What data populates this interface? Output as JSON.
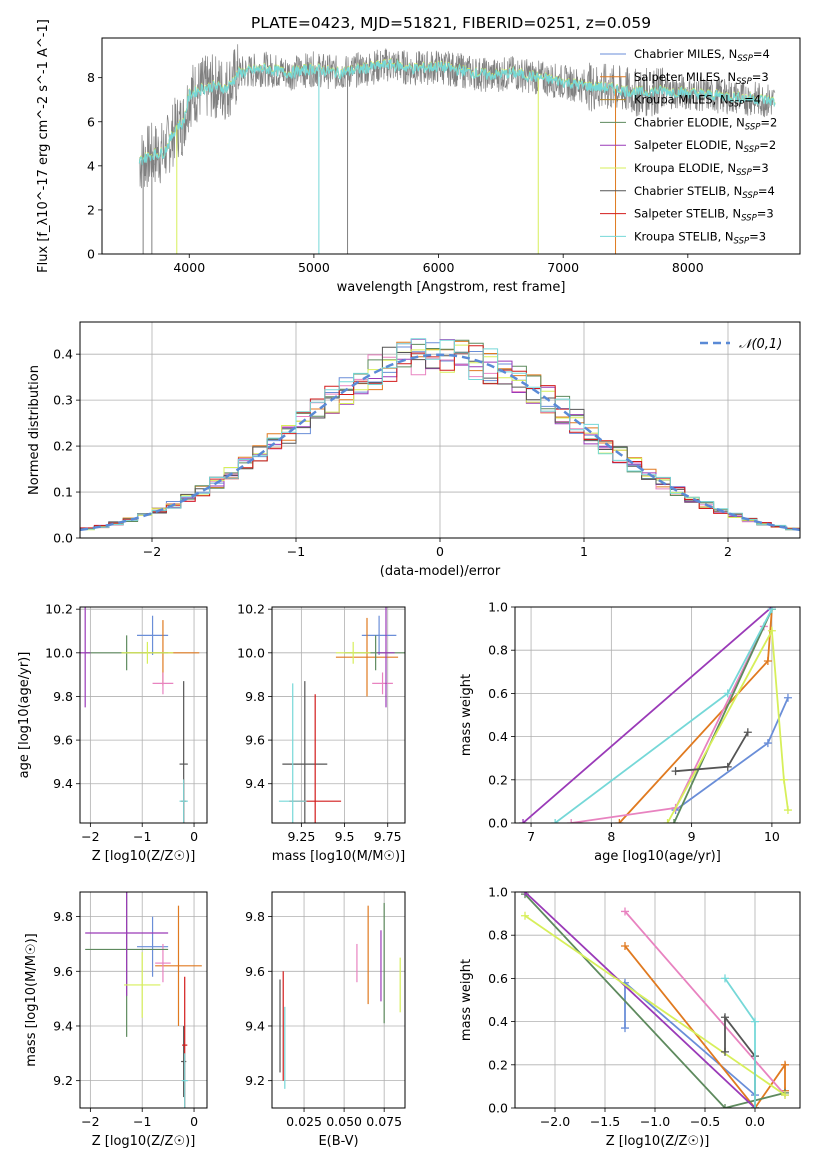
{
  "colors": {
    "blue": "#6a8ed8",
    "orange": "#e07a20",
    "pink": "#e883c0",
    "green": "#5e8a5e",
    "purple": "#9a3ab8",
    "yellow": "#d7ef5a",
    "darkgray": "#555555",
    "red": "#d21b1b",
    "cyan": "#76d8d8",
    "gray": "#808080",
    "dash": "#5a8ad6"
  },
  "chart_data": [
    {
      "id": "spectrum",
      "type": "line",
      "title": "PLATE=0423, MJD=51821, FIBERID=0251, z=0.059",
      "xlabel": "wavelength [Angstrom, rest frame]",
      "ylabel": "Flux [f_λ10^-17 erg cm^-2 s^-1 A^-1]",
      "xlim": [
        3300,
        8900
      ],
      "ylim": [
        0,
        9.8
      ],
      "xticks": [
        4000,
        5000,
        6000,
        7000,
        8000
      ],
      "yticks": [
        0,
        2,
        4,
        6,
        8
      ],
      "legend_position": "top-right",
      "legend": [
        {
          "label": "Chabrier MILES, N_SSP=4",
          "color": "#6a8ed8"
        },
        {
          "label": "Salpeter MILES, N_SSP=3",
          "color": "#e07a20"
        },
        {
          "label": "Kroupa MILES, N_SSP=4",
          "color": "#b5862a"
        },
        {
          "label": "Chabrier ELODIE, N_SSP=2",
          "color": "#5e8a5e"
        },
        {
          "label": "Salpeter ELODIE, N_SSP=2",
          "color": "#9a3ab8"
        },
        {
          "label": "Kroupa ELODIE, N_SSP=3",
          "color": "#d7ef5a"
        },
        {
          "label": "Chabrier STELIB, N_SSP=4",
          "color": "#555555"
        },
        {
          "label": "Salpeter STELIB, N_SSP=3",
          "color": "#d21b1b"
        },
        {
          "label": "Kroupa STELIB, N_SSP=3",
          "color": "#76d8d8"
        }
      ],
      "continuum": [
        [
          3600,
          4.2
        ],
        [
          3700,
          4.5
        ],
        [
          3800,
          4.6
        ],
        [
          3900,
          5.8
        ],
        [
          3950,
          5.9
        ],
        [
          4000,
          7.2
        ],
        [
          4100,
          7.5
        ],
        [
          4200,
          7.6
        ],
        [
          4300,
          7.5
        ],
        [
          4400,
          8.2
        ],
        [
          4600,
          8.4
        ],
        [
          4800,
          8.2
        ],
        [
          5000,
          8.4
        ],
        [
          5200,
          8.2
        ],
        [
          5400,
          8.4
        ],
        [
          5600,
          8.6
        ],
        [
          5800,
          8.4
        ],
        [
          6000,
          8.5
        ],
        [
          6200,
          8.3
        ],
        [
          6400,
          8.1
        ],
        [
          6600,
          8.2
        ],
        [
          6800,
          8.0
        ],
        [
          7000,
          7.8
        ],
        [
          7200,
          7.6
        ],
        [
          7400,
          7.5
        ],
        [
          7600,
          7.3
        ],
        [
          7800,
          7.4
        ],
        [
          8000,
          7.3
        ],
        [
          8200,
          7.2
        ],
        [
          8400,
          7.1
        ],
        [
          8600,
          7.0
        ],
        [
          8700,
          6.9
        ]
      ]
    },
    {
      "id": "residuals",
      "type": "line",
      "xlabel": "(data-model)/error",
      "ylabel": "Normed distribution",
      "xlim": [
        -2.5,
        2.5
      ],
      "ylim": [
        0,
        0.47
      ],
      "xticks": [
        -2,
        -1,
        0,
        1,
        2
      ],
      "yticks": [
        0.0,
        0.1,
        0.2,
        0.3,
        0.4
      ],
      "grid": true,
      "legend": [
        {
          "label": "𝒩(0,1)",
          "style": "dashed"
        }
      ],
      "legend_position": "top-right"
    },
    {
      "id": "age_vs_Z",
      "type": "scatter",
      "xlabel": "Z [log10(Z/Z☉)]",
      "ylabel": "age  [log10(age/yr)]",
      "xlim": [
        -2.2,
        0.25
      ],
      "ylim": [
        9.22,
        10.21
      ],
      "xticks": [
        -2,
        -1,
        0
      ],
      "yticks": [
        9.4,
        9.6,
        9.8,
        10.0,
        10.2
      ],
      "grid": true,
      "points": [
        {
          "x": -0.8,
          "y": 10.08,
          "xerr": 0.3,
          "yerr": 0.09,
          "color": "blue"
        },
        {
          "x": -0.6,
          "y": 10.0,
          "xerr": 0.7,
          "yerr": 0.15,
          "color": "orange"
        },
        {
          "x": -0.6,
          "y": 9.86,
          "xerr": 0.2,
          "yerr": 0.05,
          "color": "pink"
        },
        {
          "x": -1.3,
          "y": 10.0,
          "xerr": 0.8,
          "yerr": 0.08,
          "color": "green"
        },
        {
          "x": -2.1,
          "y": 10.0,
          "xerr": 0.1,
          "yerr": 0.25,
          "color": "purple"
        },
        {
          "x": -0.9,
          "y": 10.0,
          "xerr": 0.5,
          "yerr": 0.05,
          "color": "yellow"
        },
        {
          "x": -0.2,
          "y": 9.49,
          "xerr": 0.08,
          "yerr": 0.38,
          "color": "darkgray"
        },
        {
          "x": -0.2,
          "y": 9.32,
          "xerr": 0.05,
          "yerr": 0.1,
          "color": "red"
        },
        {
          "x": -0.2,
          "y": 9.32,
          "xerr": 0.08,
          "yerr": 0.1,
          "color": "cyan"
        }
      ]
    },
    {
      "id": "age_vs_mass",
      "type": "scatter",
      "xlabel": "mass [log10(M/M☉)]",
      "ylabel": "",
      "xlim": [
        9.08,
        9.85
      ],
      "ylim": [
        9.22,
        10.21
      ],
      "xticks": [
        9.25,
        9.5,
        9.75
      ],
      "yticks": [
        9.4,
        9.6,
        9.8,
        10.0,
        10.2
      ],
      "grid": true,
      "points": [
        {
          "x": 9.7,
          "y": 10.08,
          "xerr": 0.1,
          "yerr": 0.09,
          "color": "blue"
        },
        {
          "x": 9.63,
          "y": 9.98,
          "xerr": 0.18,
          "yerr": 0.18,
          "color": "orange"
        },
        {
          "x": 9.72,
          "y": 9.86,
          "xerr": 0.06,
          "yerr": 0.05,
          "color": "pink"
        },
        {
          "x": 9.68,
          "y": 10.0,
          "xerr": 0.18,
          "yerr": 0.08,
          "color": "green"
        },
        {
          "x": 9.74,
          "y": 10.0,
          "xerr": 0.05,
          "yerr": 0.25,
          "color": "purple"
        },
        {
          "x": 9.55,
          "y": 10.0,
          "xerr": 0.1,
          "yerr": 0.05,
          "color": "yellow"
        },
        {
          "x": 9.27,
          "y": 9.49,
          "xerr": 0.13,
          "yerr": 0.38,
          "color": "darkgray"
        },
        {
          "x": 9.33,
          "y": 9.32,
          "xerr": 0.15,
          "yerr": 0.49,
          "color": "red"
        },
        {
          "x": 9.2,
          "y": 9.32,
          "xerr": 0.08,
          "yerr": 0.54,
          "color": "cyan"
        }
      ]
    },
    {
      "id": "weight_vs_age",
      "type": "line",
      "xlabel": "age  [log10(age/yr)]",
      "ylabel": "mass weight",
      "xlim": [
        6.8,
        10.35
      ],
      "ylim": [
        0,
        1
      ],
      "xticks": [
        7,
        8,
        9,
        10
      ],
      "yticks": [
        0.0,
        0.2,
        0.4,
        0.6,
        0.8,
        1.0
      ],
      "grid": true,
      "series": [
        {
          "color": "blue",
          "x": [
            8.8,
            9.95,
            10.2
          ],
          "y": [
            0.06,
            0.37,
            0.58
          ]
        },
        {
          "color": "orange",
          "x": [
            8.1,
            9.95,
            10.0
          ],
          "y": [
            0.0,
            0.75,
            0.99
          ]
        },
        {
          "color": "pink",
          "x": [
            7.5,
            8.8,
            9.9
          ],
          "y": [
            0.0,
            0.07,
            0.91
          ]
        },
        {
          "color": "green",
          "x": [
            8.78,
            10.0
          ],
          "y": [
            0.0,
            0.99
          ]
        },
        {
          "color": "purple",
          "x": [
            6.9,
            10.0
          ],
          "y": [
            0.0,
            1.0
          ]
        },
        {
          "color": "yellow",
          "x": [
            8.7,
            10.0,
            10.15,
            10.2
          ],
          "y": [
            0.0,
            0.89,
            0.2,
            0.06
          ]
        },
        {
          "color": "darkgray",
          "x": [
            8.8,
            9.45,
            9.7
          ],
          "y": [
            0.24,
            0.26,
            0.42
          ]
        },
        {
          "color": "cyan",
          "x": [
            7.3,
            9.45,
            10.0
          ],
          "y": [
            0.0,
            0.6,
            0.99
          ]
        }
      ]
    },
    {
      "id": "mass_vs_Z",
      "type": "scatter",
      "xlabel": "Z [log10(Z/Z☉)]",
      "ylabel": "mass [log10(M/M☉)]",
      "xlim": [
        -2.2,
        0.25
      ],
      "ylim": [
        9.1,
        9.89
      ],
      "xticks": [
        -2,
        -1,
        0
      ],
      "yticks": [
        9.2,
        9.4,
        9.6,
        9.8
      ],
      "grid": true,
      "points": [
        {
          "x": -0.8,
          "y": 9.69,
          "xerr": 0.3,
          "yerr": 0.11,
          "color": "blue"
        },
        {
          "x": -0.3,
          "y": 9.62,
          "xerr": 0.45,
          "yerr": 0.22,
          "color": "orange"
        },
        {
          "x": -0.6,
          "y": 9.63,
          "xerr": 0.15,
          "yerr": 0.07,
          "color": "pink"
        },
        {
          "x": -1.3,
          "y": 9.68,
          "xerr": 0.8,
          "yerr": 0.32,
          "color": "green"
        },
        {
          "x": -1.3,
          "y": 9.74,
          "xerr": 0.8,
          "yerr": 0.23,
          "color": "purple"
        },
        {
          "x": -1.0,
          "y": 9.55,
          "xerr": 0.35,
          "yerr": 0.12,
          "color": "yellow"
        },
        {
          "x": -0.2,
          "y": 9.27,
          "xerr": 0.05,
          "yerr": 0.13,
          "color": "darkgray"
        },
        {
          "x": -0.18,
          "y": 9.33,
          "xerr": 0.05,
          "yerr": 0.25,
          "color": "red"
        },
        {
          "x": -0.18,
          "y": 9.2,
          "xerr": 0.06,
          "yerr": 0.1,
          "color": "cyan"
        }
      ]
    },
    {
      "id": "mass_vs_EBV",
      "type": "scatter",
      "xlabel": "E(B-V)",
      "ylabel": "",
      "xlim": [
        0.005,
        0.088
      ],
      "ylim": [
        9.1,
        9.89
      ],
      "xticks": [
        0.025,
        0.05,
        0.075
      ],
      "xtick_labels": [
        "0.025",
        "0.050",
        "0.075"
      ],
      "yticks": [
        9.2,
        9.4,
        9.6,
        9.8
      ],
      "grid": true,
      "points": [
        {
          "x": 0.058,
          "y": 9.63,
          "yerr": 0.07,
          "color": "pink"
        },
        {
          "x": 0.065,
          "y": 9.66,
          "yerr": 0.18,
          "color": "orange"
        },
        {
          "x": 0.073,
          "y": 9.62,
          "yerr": 0.13,
          "color": "purple"
        },
        {
          "x": 0.075,
          "y": 9.63,
          "yerr": 0.22,
          "color": "green"
        },
        {
          "x": 0.085,
          "y": 9.55,
          "yerr": 0.1,
          "color": "yellow"
        },
        {
          "x": 0.01,
          "y": 9.4,
          "yerr": 0.17,
          "color": "darkgray"
        },
        {
          "x": 0.012,
          "y": 9.4,
          "yerr": 0.2,
          "color": "red"
        },
        {
          "x": 0.013,
          "y": 9.32,
          "yerr": 0.15,
          "color": "cyan"
        }
      ]
    },
    {
      "id": "weight_vs_Z",
      "type": "line",
      "xlabel": "Z [log10(Z/Z☉)]",
      "ylabel": "mass weight",
      "xlim": [
        -2.4,
        0.45
      ],
      "ylim": [
        0,
        1
      ],
      "xticks": [
        -2.0,
        -1.5,
        -1.0,
        -0.5,
        0.0
      ],
      "xtick_labels": [
        "−2.0",
        "−1.5",
        "−1.0",
        "−0.5",
        "0.0"
      ],
      "yticks": [
        0.0,
        0.2,
        0.4,
        0.6,
        0.8,
        1.0
      ],
      "grid": true,
      "series": [
        {
          "color": "blue",
          "x": [
            -1.3,
            -1.3,
            0.0
          ],
          "y": [
            0.37,
            0.58,
            0.06
          ]
        },
        {
          "color": "orange",
          "x": [
            -1.3,
            0.0,
            0.3,
            0.3
          ],
          "y": [
            0.75,
            0.0,
            0.2,
            0.08
          ]
        },
        {
          "color": "pink",
          "x": [
            -1.3,
            0.3
          ],
          "y": [
            0.91,
            0.06
          ]
        },
        {
          "color": "green",
          "x": [
            -2.3,
            -0.3,
            0.3
          ],
          "y": [
            0.99,
            0.0,
            0.07
          ]
        },
        {
          "color": "purple",
          "x": [
            -2.3,
            0.0
          ],
          "y": [
            1.0,
            0.0
          ]
        },
        {
          "color": "yellow",
          "x": [
            -2.3,
            0.3
          ],
          "y": [
            0.89,
            0.06
          ]
        },
        {
          "color": "darkgray",
          "x": [
            -0.3,
            -0.3,
            0.0,
            0.0
          ],
          "y": [
            0.26,
            0.42,
            0.24,
            0.0
          ]
        },
        {
          "color": "cyan",
          "x": [
            -0.3,
            0.0,
            0.0
          ],
          "y": [
            0.6,
            0.4,
            0.0
          ]
        }
      ]
    }
  ]
}
